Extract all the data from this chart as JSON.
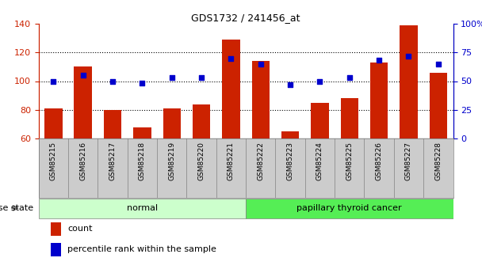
{
  "title": "GDS1732 / 241456_at",
  "categories": [
    "GSM85215",
    "GSM85216",
    "GSM85217",
    "GSM85218",
    "GSM85219",
    "GSM85220",
    "GSM85221",
    "GSM85222",
    "GSM85223",
    "GSM85224",
    "GSM85225",
    "GSM85226",
    "GSM85227",
    "GSM85228"
  ],
  "bar_values": [
    81,
    110,
    80,
    68,
    81,
    84,
    129,
    114,
    65,
    85,
    88,
    113,
    139,
    106
  ],
  "dot_right_vals": [
    50,
    55,
    50,
    48,
    53,
    53,
    70,
    65,
    47,
    50,
    53,
    68,
    72,
    65
  ],
  "ylim_left": [
    60,
    140
  ],
  "ylim_right": [
    0,
    100
  ],
  "yticks_left": [
    60,
    80,
    100,
    120,
    140
  ],
  "yticks_right": [
    0,
    25,
    50,
    75,
    100
  ],
  "bar_color": "#CC2200",
  "dot_color": "#0000CC",
  "groups": [
    {
      "label": "normal",
      "start": 0,
      "end": 7,
      "color": "#CCFFCC"
    },
    {
      "label": "papillary thyroid cancer",
      "start": 7,
      "end": 14,
      "color": "#55EE55"
    }
  ],
  "disease_state_label": "disease state",
  "legend_bar_label": "count",
  "legend_dot_label": "percentile rank within the sample",
  "tick_label_color_left": "#CC2200",
  "tick_label_color_right": "#0000CC",
  "xtick_bg_color": "#CCCCCC"
}
